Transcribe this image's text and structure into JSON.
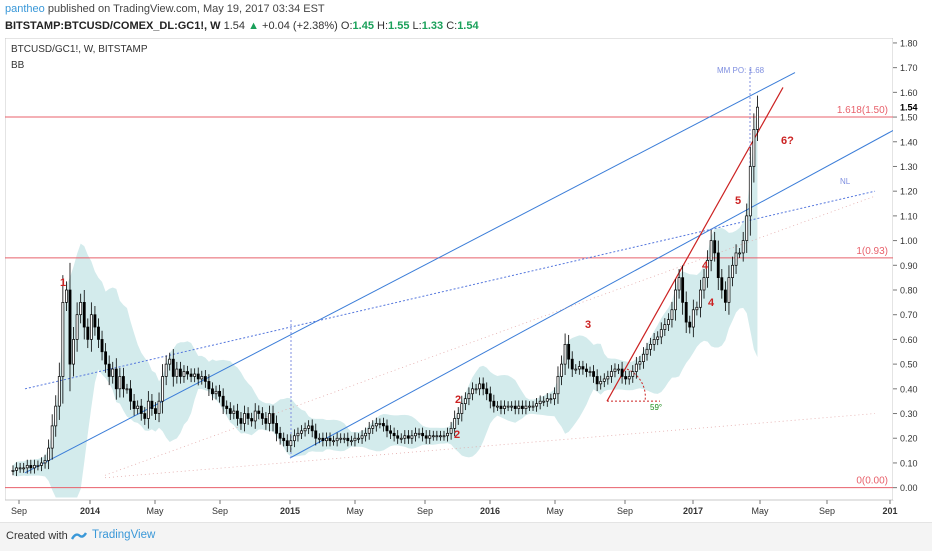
{
  "header": {
    "author": "pantheo",
    "published_text": "published on TradingView.com, May 19, 2017 03:34 EST",
    "symbol": "BITSTAMP:BTCUSD/COMEX_DL:GC1!, W",
    "last": "1.54",
    "change": "+0.04 (+2.38%)",
    "o_label": "O:",
    "o": "1.45",
    "h_label": "H:",
    "h": "1.55",
    "l_label": "L:",
    "l": "1.33",
    "c_label": "C:",
    "c": "1.54"
  },
  "legend": {
    "series": "BTCUSD/GC1!, W, BITSTAMP",
    "indicator": "BB"
  },
  "footer": {
    "created": "Created with",
    "brand": "TradingView"
  },
  "colors": {
    "up": "#ffffff",
    "down": "#000000",
    "bb_fill": "#d3ebec",
    "channel": "#3b7dd8",
    "fib": "#e8616b",
    "wave": "#cc2222",
    "arrow": "#7f8fe0"
  },
  "icons": [
    "tradingview-logo-icon",
    "up-arrow-icon"
  ],
  "chart_data": {
    "type": "candlestick",
    "y_scale": "linear",
    "ylim": [
      -0.05,
      1.82
    ],
    "y_ticks": [
      "1.80",
      "1.70",
      "1.60",
      "1.50",
      "1.40",
      "1.30",
      "1.20",
      "1.10",
      "1.00",
      "0.90",
      "0.80",
      "0.70",
      "0.60",
      "0.50",
      "0.40",
      "0.30",
      "0.20",
      "0.10",
      "0.00"
    ],
    "x_ticks": [
      "Sep",
      "2014",
      "May",
      "Sep",
      "2015",
      "May",
      "Sep",
      "2016",
      "May",
      "Sep",
      "2017",
      "May",
      "Sep",
      "201"
    ],
    "last_price_label": "1.54",
    "candles_weekly_close_approx": [
      0.07,
      0.08,
      0.08,
      0.08,
      0.09,
      0.08,
      0.09,
      0.09,
      0.1,
      0.11,
      0.16,
      0.25,
      0.33,
      0.45,
      0.75,
      0.8,
      0.5,
      0.6,
      0.7,
      0.75,
      0.65,
      0.6,
      0.7,
      0.65,
      0.6,
      0.55,
      0.5,
      0.45,
      0.48,
      0.4,
      0.45,
      0.4,
      0.4,
      0.35,
      0.32,
      0.33,
      0.3,
      0.28,
      0.35,
      0.32,
      0.3,
      0.35,
      0.45,
      0.5,
      0.52,
      0.45,
      0.48,
      0.45,
      0.47,
      0.46,
      0.45,
      0.46,
      0.44,
      0.45,
      0.43,
      0.4,
      0.38,
      0.39,
      0.37,
      0.33,
      0.32,
      0.3,
      0.31,
      0.28,
      0.26,
      0.3,
      0.28,
      0.27,
      0.31,
      0.3,
      0.28,
      0.26,
      0.3,
      0.26,
      0.22,
      0.2,
      0.19,
      0.17,
      0.19,
      0.21,
      0.22,
      0.23,
      0.24,
      0.25,
      0.23,
      0.2,
      0.2,
      0.19,
      0.2,
      0.19,
      0.19,
      0.2,
      0.2,
      0.2,
      0.19,
      0.19,
      0.2,
      0.2,
      0.21,
      0.22,
      0.24,
      0.25,
      0.26,
      0.26,
      0.25,
      0.23,
      0.22,
      0.21,
      0.2,
      0.2,
      0.21,
      0.2,
      0.21,
      0.22,
      0.22,
      0.21,
      0.2,
      0.21,
      0.21,
      0.21,
      0.21,
      0.21,
      0.22,
      0.24,
      0.28,
      0.3,
      0.34,
      0.36,
      0.38,
      0.4,
      0.4,
      0.42,
      0.4,
      0.38,
      0.35,
      0.33,
      0.33,
      0.32,
      0.33,
      0.33,
      0.33,
      0.32,
      0.33,
      0.32,
      0.33,
      0.33,
      0.33,
      0.34,
      0.35,
      0.35,
      0.36,
      0.36,
      0.38,
      0.45,
      0.5,
      0.58,
      0.52,
      0.48,
      0.48,
      0.49,
      0.48,
      0.47,
      0.47,
      0.45,
      0.42,
      0.43,
      0.44,
      0.45,
      0.47,
      0.48,
      0.48,
      0.45,
      0.44,
      0.45,
      0.47,
      0.5,
      0.51,
      0.54,
      0.56,
      0.58,
      0.6,
      0.61,
      0.64,
      0.66,
      0.68,
      0.72,
      0.8,
      0.85,
      0.75,
      0.67,
      0.65,
      0.72,
      0.73,
      0.8,
      0.85,
      0.92,
      1.0,
      0.95,
      0.85,
      0.8,
      0.75,
      0.85,
      0.9,
      0.95,
      0.95,
      1.0,
      1.1,
      1.3,
      1.45,
      1.54
    ],
    "bollinger_bands": "shaded band around price",
    "lines": [
      {
        "name": "1.618(1.50)",
        "y": 1.5,
        "kind": "horizontal"
      },
      {
        "name": "1(0.93)",
        "y": 0.93,
        "kind": "horizontal"
      },
      {
        "name": "0(0.00)",
        "y": 0.0,
        "kind": "horizontal"
      }
    ],
    "annotations": [
      {
        "text": "1"
      },
      {
        "text": "2"
      },
      {
        "text": "2"
      },
      {
        "text": "3"
      },
      {
        "text": "4"
      },
      {
        "text": "4"
      },
      {
        "text": "5"
      },
      {
        "text": "6?"
      },
      {
        "text": "MM PO: 1.68"
      },
      {
        "text": "NL"
      },
      {
        "text": "59°"
      }
    ]
  }
}
